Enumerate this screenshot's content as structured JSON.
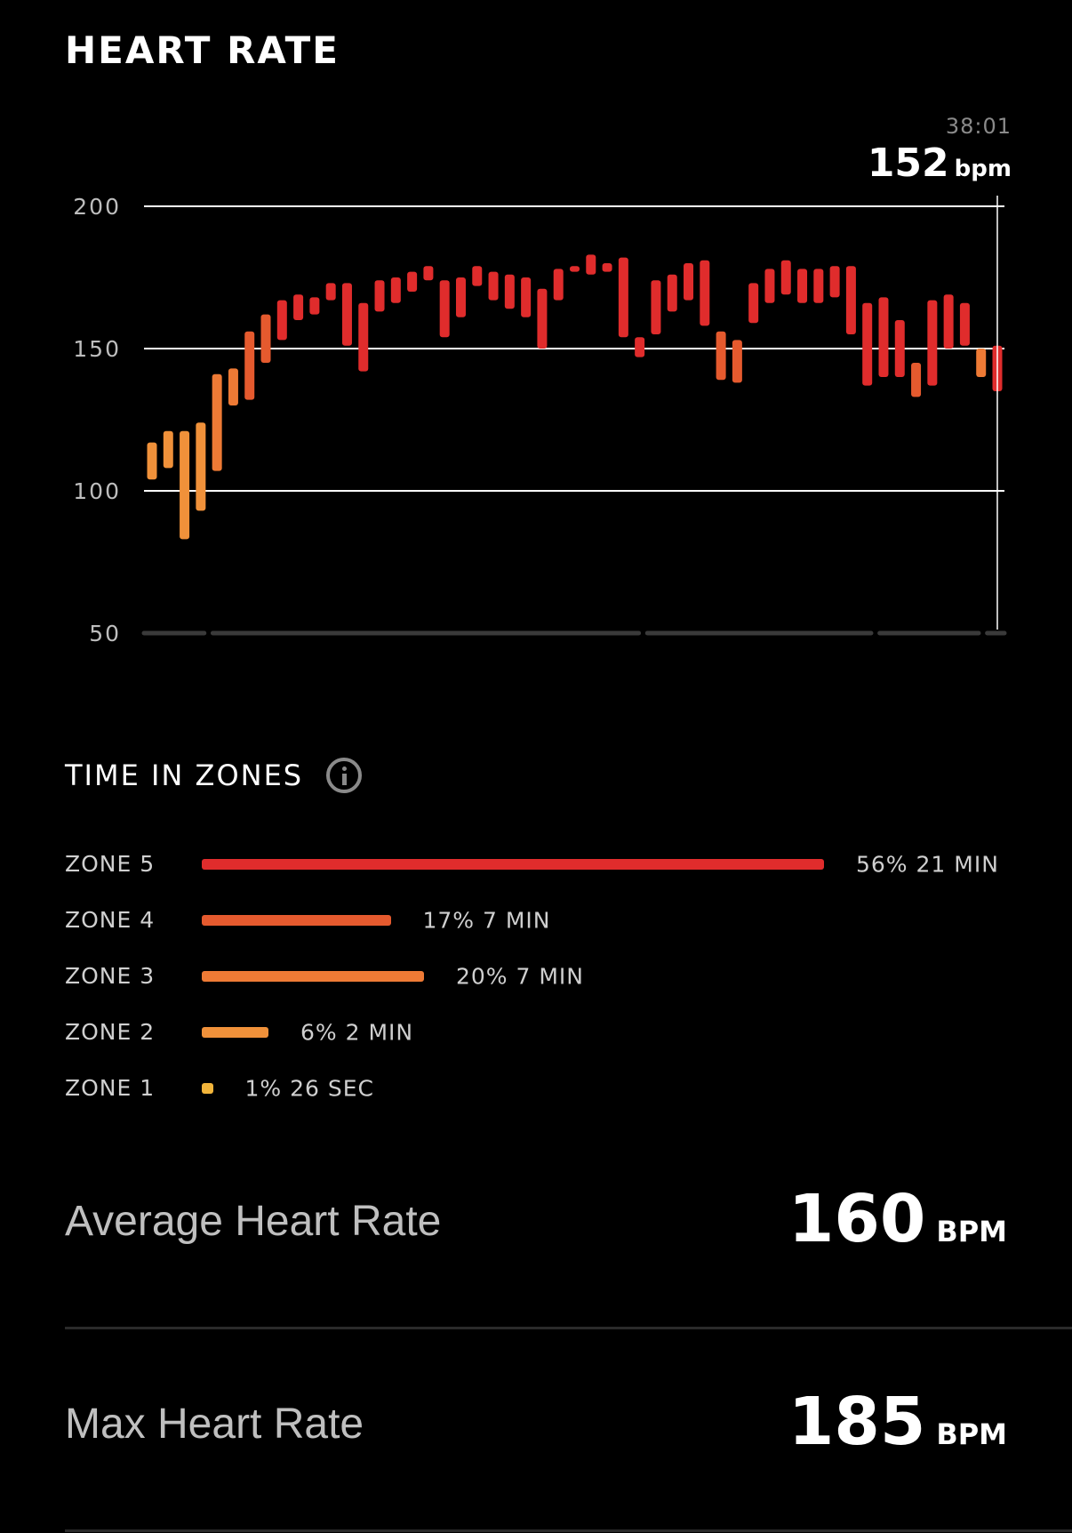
{
  "header": {
    "title": "HEART RATE"
  },
  "readout": {
    "time": "38:01",
    "value": "152",
    "unit": "bpm"
  },
  "chart_data": {
    "type": "bar",
    "subtype": "range-bars",
    "yticks": [
      "200",
      "150",
      "100",
      "50"
    ],
    "ylim": [
      50,
      200
    ],
    "grid": true,
    "cursor_sample_index": 48,
    "series": [
      {
        "ranges": [
          [
            104,
            117
          ],
          [
            108,
            121
          ],
          [
            83,
            121
          ],
          [
            93,
            124
          ],
          [
            107,
            141
          ],
          [
            130,
            143
          ],
          [
            132,
            156
          ],
          [
            145,
            162
          ],
          [
            153,
            167
          ],
          [
            160,
            169
          ],
          [
            162,
            168
          ],
          [
            167,
            173
          ],
          [
            151,
            173
          ],
          [
            142,
            166
          ],
          [
            163,
            174
          ],
          [
            166,
            175
          ],
          [
            170,
            177
          ],
          [
            174,
            179
          ],
          [
            154,
            174
          ],
          [
            161,
            175
          ],
          [
            172,
            179
          ],
          [
            167,
            177
          ],
          [
            164,
            176
          ],
          [
            161,
            175
          ],
          [
            150,
            171
          ],
          [
            167,
            178
          ],
          [
            177,
            179
          ],
          [
            176,
            183
          ],
          [
            177,
            180
          ],
          [
            154,
            182
          ],
          [
            147,
            154
          ],
          [
            155,
            174
          ],
          [
            163,
            176
          ],
          [
            167,
            180
          ],
          [
            158,
            181
          ],
          [
            139,
            156
          ],
          [
            138,
            153
          ],
          [
            159,
            173
          ],
          [
            166,
            178
          ],
          [
            169,
            181
          ],
          [
            166,
            178
          ],
          [
            166,
            178
          ],
          [
            168,
            179
          ],
          [
            155,
            179
          ],
          [
            137,
            166
          ],
          [
            140,
            168
          ],
          [
            140,
            160
          ],
          [
            133,
            145
          ],
          [
            137,
            167
          ],
          [
            150,
            169
          ],
          [
            151,
            166
          ],
          [
            140,
            150
          ],
          [
            135,
            151
          ]
        ],
        "zones": [
          2,
          2,
          2,
          2,
          3,
          3,
          4,
          4,
          5,
          5,
          5,
          5,
          5,
          5,
          5,
          5,
          5,
          5,
          5,
          5,
          5,
          5,
          5,
          5,
          5,
          5,
          5,
          5,
          5,
          5,
          5,
          5,
          5,
          5,
          5,
          4,
          4,
          5,
          5,
          5,
          5,
          5,
          5,
          5,
          5,
          5,
          5,
          4,
          5,
          5,
          5,
          3,
          5
        ]
      }
    ],
    "zone_colors": {
      "1": "#f2b53b",
      "2": "#f0913a",
      "3": "#ee7a35",
      "4": "#e55a2e",
      "5": "#e02c2c"
    },
    "baseline_segments_color": "#3a3a3a",
    "gridline_color": "#ffffff"
  },
  "zones_section": {
    "title": "TIME IN ZONES",
    "info_icon": "info-icon",
    "zones": [
      {
        "label": "ZONE 5",
        "percent": 56,
        "text": "56% 21 MIN",
        "color": "#e02c2c"
      },
      {
        "label": "ZONE 4",
        "percent": 17,
        "text": "17% 7 MIN",
        "color": "#e55a2e"
      },
      {
        "label": "ZONE 3",
        "percent": 20,
        "text": "20% 7 MIN",
        "color": "#ee7a35"
      },
      {
        "label": "ZONE 2",
        "percent": 6,
        "text": "6% 2 MIN",
        "color": "#f0913a"
      },
      {
        "label": "ZONE 1",
        "percent": 1,
        "text": "1% 26 SEC",
        "color": "#f2b53b"
      }
    ]
  },
  "stats": {
    "average": {
      "label": "Average Heart Rate",
      "value": "160",
      "unit": "BPM"
    },
    "max": {
      "label": "Max Heart Rate",
      "value": "185",
      "unit": "BPM"
    }
  }
}
